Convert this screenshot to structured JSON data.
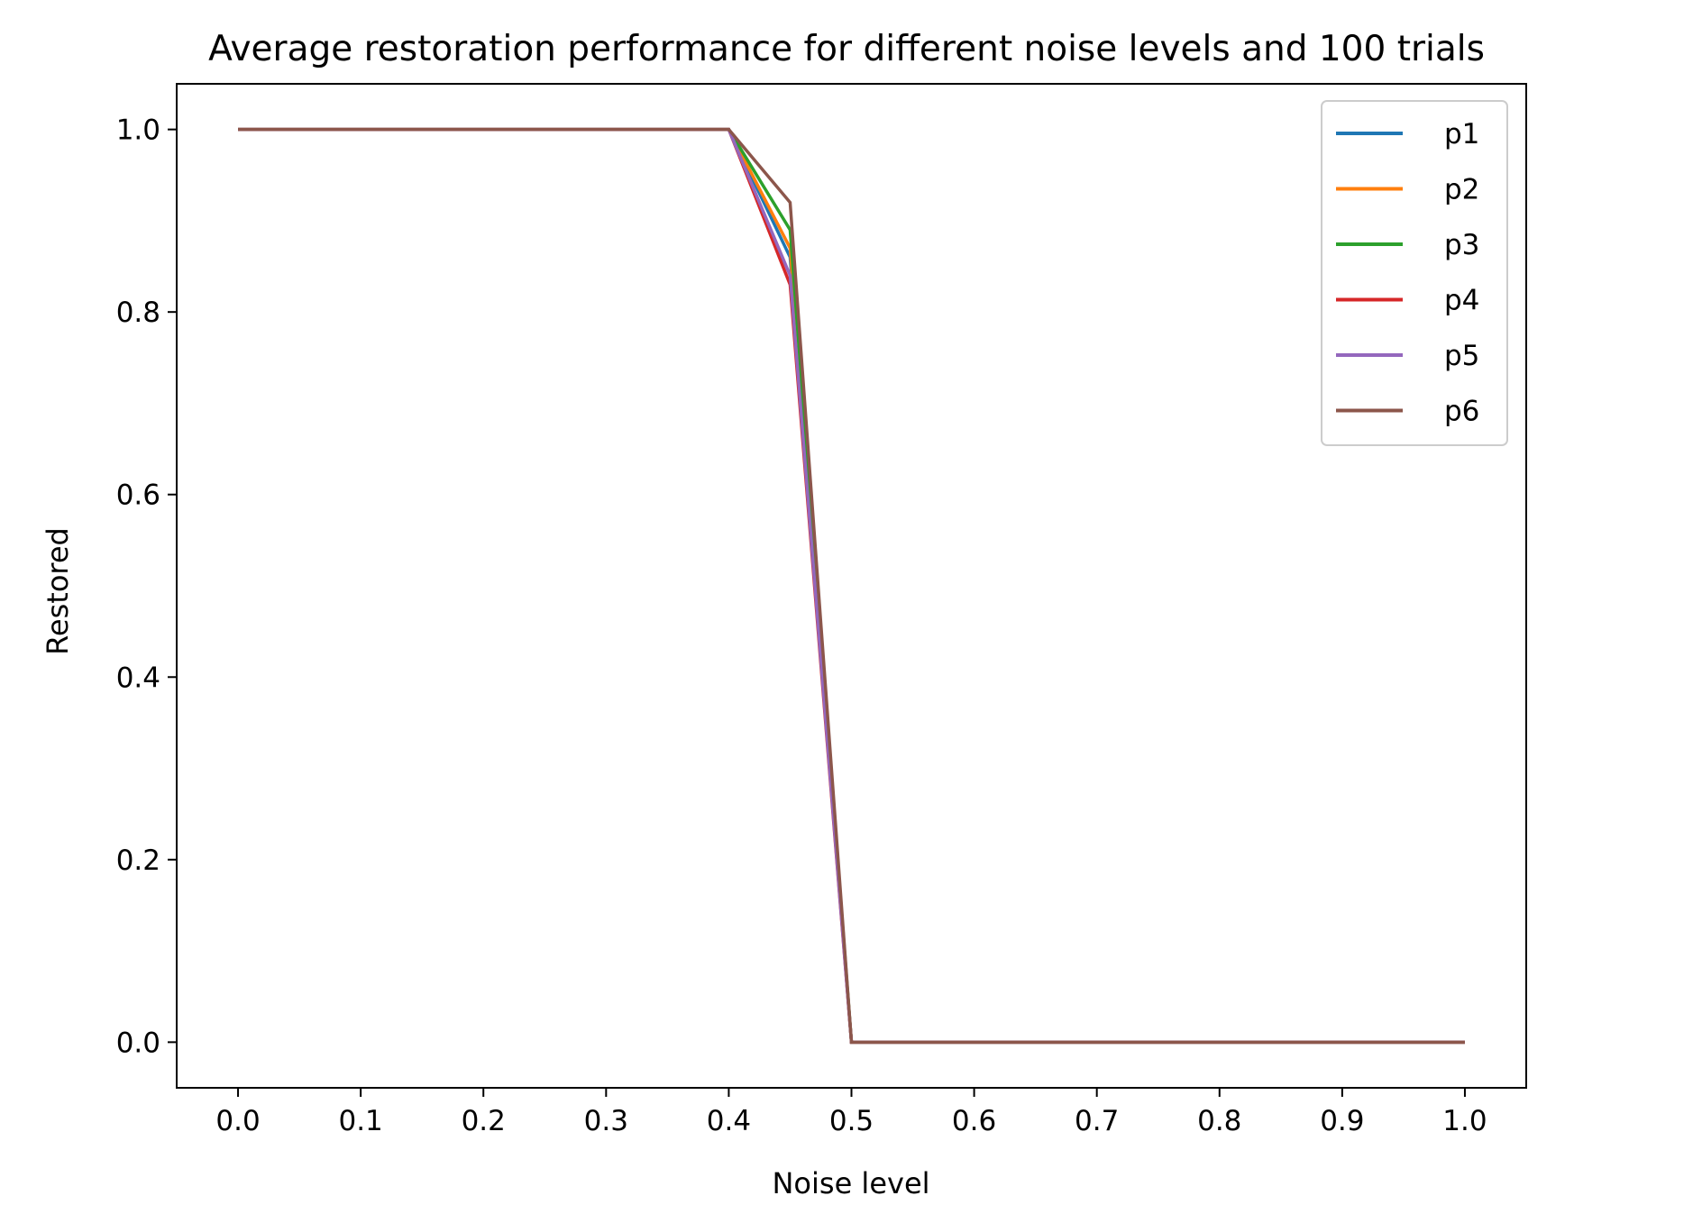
{
  "chart_data": {
    "type": "line",
    "title": "Average restoration performance for different noise levels and 100 trials",
    "xlabel": "Noise level",
    "ylabel": "Restored",
    "xlim": [
      -0.05,
      1.05
    ],
    "ylim": [
      -0.05,
      1.05
    ],
    "xticks": [
      "0.0",
      "0.1",
      "0.2",
      "0.3",
      "0.4",
      "0.5",
      "0.6",
      "0.7",
      "0.8",
      "0.9",
      "1.0"
    ],
    "yticks": [
      "0.0",
      "0.2",
      "0.4",
      "0.6",
      "0.8",
      "1.0"
    ],
    "x": [
      0.0,
      0.05,
      0.1,
      0.15,
      0.2,
      0.25,
      0.3,
      0.35,
      0.4,
      0.45,
      0.5,
      0.55,
      0.6,
      0.65,
      0.7,
      0.75,
      0.8,
      0.85,
      0.9,
      0.95,
      1.0
    ],
    "legend_position": "top-right",
    "grid": false,
    "series": [
      {
        "name": "p1",
        "color": "#1f77b4",
        "values": [
          1,
          1,
          1,
          1,
          1,
          1,
          1,
          1,
          1,
          0.86,
          0,
          0,
          0,
          0,
          0,
          0,
          0,
          0,
          0,
          0,
          0
        ]
      },
      {
        "name": "p2",
        "color": "#ff7f0e",
        "values": [
          1,
          1,
          1,
          1,
          1,
          1,
          1,
          1,
          1,
          0.87,
          0,
          0,
          0,
          0,
          0,
          0,
          0,
          0,
          0,
          0,
          0
        ]
      },
      {
        "name": "p3",
        "color": "#2ca02c",
        "values": [
          1,
          1,
          1,
          1,
          1,
          1,
          1,
          1,
          1,
          0.89,
          0,
          0,
          0,
          0,
          0,
          0,
          0,
          0,
          0,
          0,
          0
        ]
      },
      {
        "name": "p4",
        "color": "#d62728",
        "values": [
          1,
          1,
          1,
          1,
          1,
          1,
          1,
          1,
          1,
          0.83,
          0,
          0,
          0,
          0,
          0,
          0,
          0,
          0,
          0,
          0,
          0
        ]
      },
      {
        "name": "p5",
        "color": "#9467bd",
        "values": [
          1,
          1,
          1,
          1,
          1,
          1,
          1,
          1,
          1,
          0.84,
          0,
          0,
          0,
          0,
          0,
          0,
          0,
          0,
          0,
          0,
          0
        ]
      },
      {
        "name": "p6",
        "color": "#8c564b",
        "values": [
          1,
          1,
          1,
          1,
          1,
          1,
          1,
          1,
          1,
          0.92,
          0,
          0,
          0,
          0,
          0,
          0,
          0,
          0,
          0,
          0,
          0
        ]
      }
    ]
  }
}
